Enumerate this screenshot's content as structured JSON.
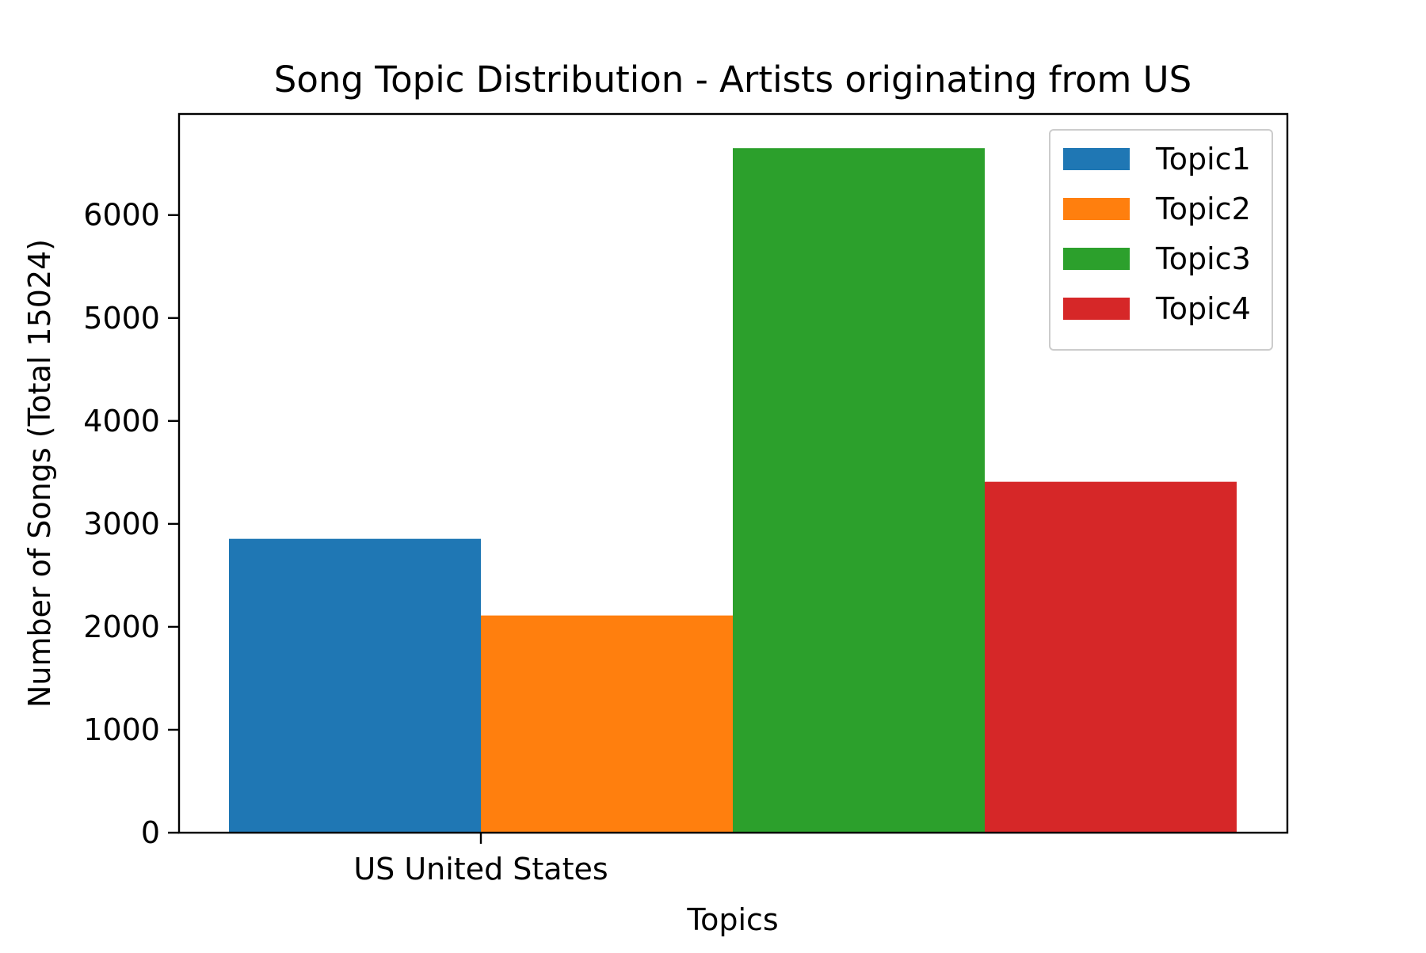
{
  "chart_data": {
    "type": "bar",
    "title": "Song Topic Distribution - Artists originating from US",
    "xlabel": "Topics",
    "ylabel": "Number of Songs (Total 15024)",
    "categories": [
      "US United States"
    ],
    "series": [
      {
        "name": "Topic1",
        "values": [
          2855
        ],
        "color": "#1f77b4"
      },
      {
        "name": "Topic2",
        "values": [
          2110
        ],
        "color": "#ff7f0e"
      },
      {
        "name": "Topic3",
        "values": [
          6650
        ],
        "color": "#2ca02c"
      },
      {
        "name": "Topic4",
        "values": [
          3409
        ],
        "color": "#d62728"
      }
    ],
    "ylim": [
      0,
      6982
    ],
    "yticks": [
      0,
      1000,
      2000,
      3000,
      4000,
      5000,
      6000
    ],
    "ytick_labels": [
      "0",
      "1000",
      "2000",
      "3000",
      "4000",
      "5000",
      "6000"
    ],
    "grid": false,
    "legend_position": "top-right"
  }
}
